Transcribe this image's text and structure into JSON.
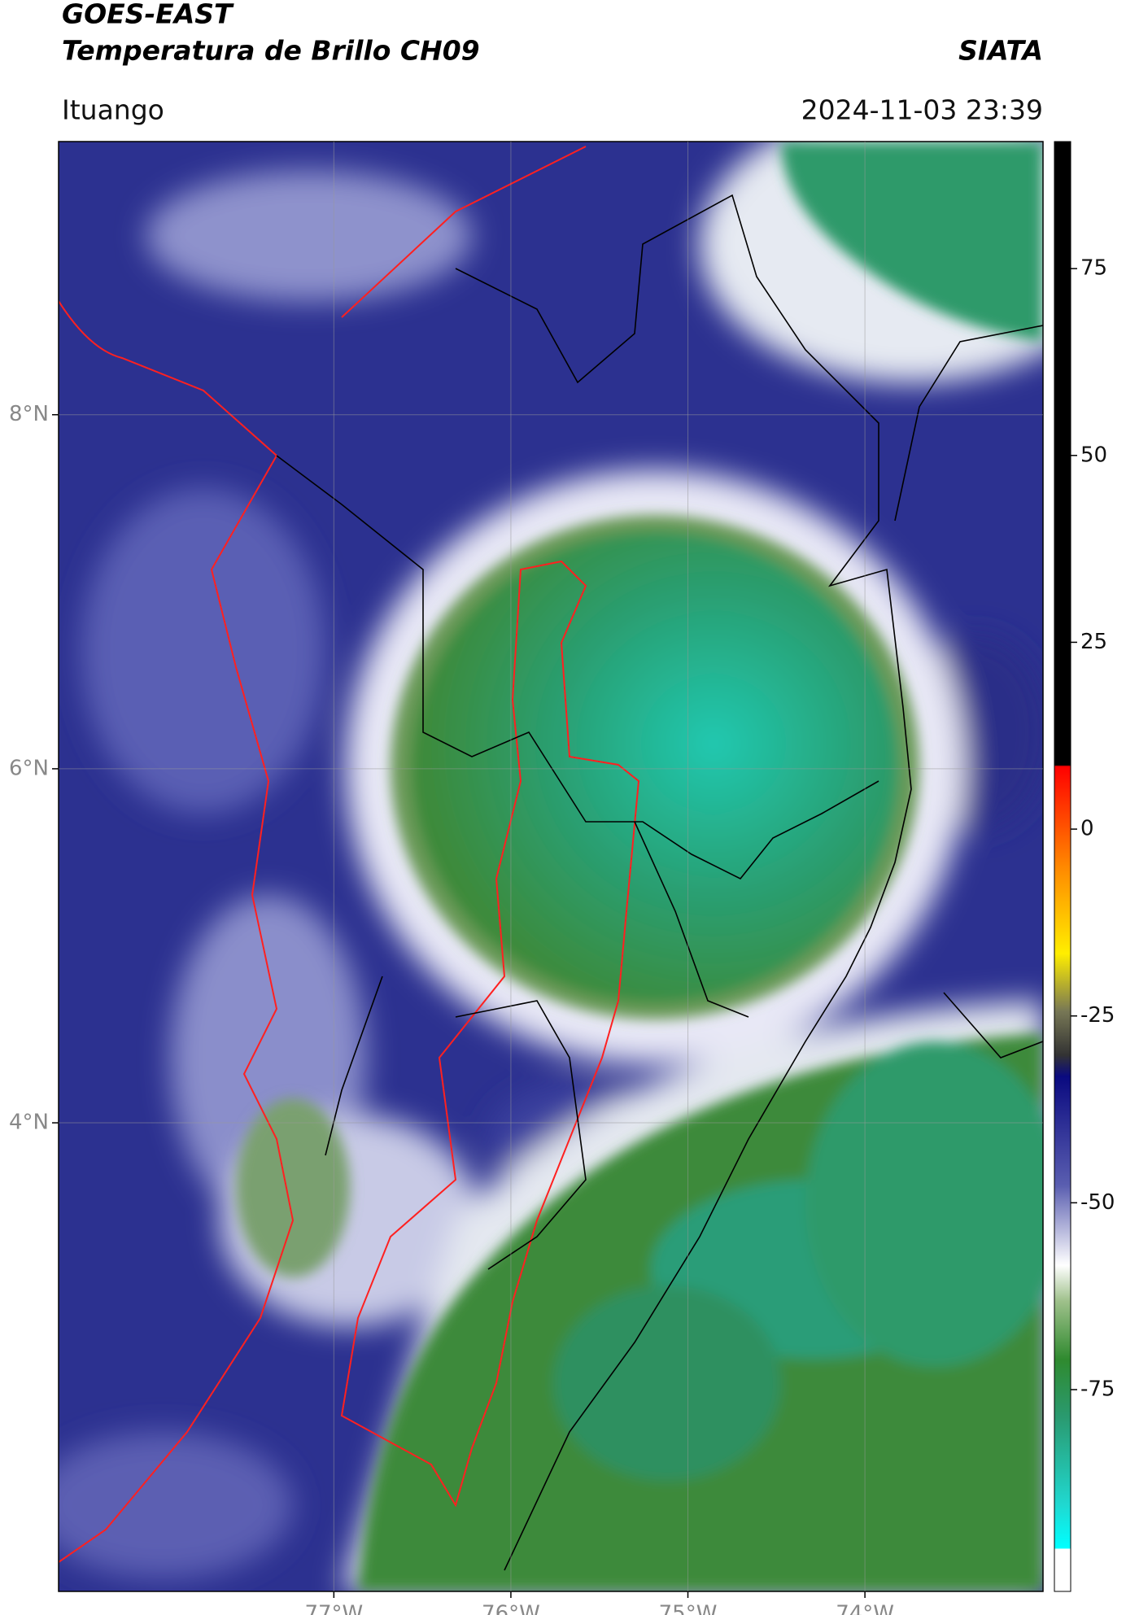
{
  "chart_data": {
    "type": "map",
    "title": "GOES-EAST",
    "subtitle": "Temperatura de Brillo CH09",
    "source": "SIATA",
    "location": "Ituango",
    "datetime": "2024-11-03 23:39",
    "xlim": [
      -78.555,
      -72.994
    ],
    "ylim": [
      1.353,
      9.543
    ],
    "xticks": [
      {
        "value": -77,
        "label": "77°W"
      },
      {
        "value": -76,
        "label": "76°W"
      },
      {
        "value": -75,
        "label": "75°W"
      },
      {
        "value": -74,
        "label": "74°W"
      }
    ],
    "yticks": [
      {
        "value": 8,
        "label": "8°N"
      },
      {
        "value": 6,
        "label": "6°N"
      },
      {
        "value": 4,
        "label": "4°N"
      }
    ],
    "grid": true,
    "colorbar": {
      "lim": [
        -102,
        92
      ],
      "ticks": [
        75,
        50,
        25,
        0,
        -25,
        -50,
        -75
      ]
    }
  }
}
